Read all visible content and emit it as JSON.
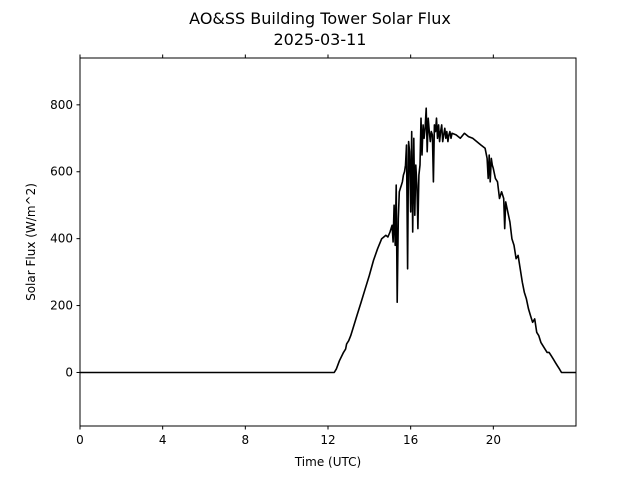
{
  "chart_data": {
    "type": "line",
    "title": "AO&SS Building Tower Solar Flux",
    "subtitle": "2025-03-11",
    "xlabel": "Time (UTC)",
    "ylabel": "Solar Flux (W/m^2)",
    "xlim": [
      0,
      24
    ],
    "ylim": [
      -160,
      940
    ],
    "xticks": [
      0,
      4,
      8,
      12,
      16,
      20
    ],
    "xtick_labels": [
      "0",
      "4",
      "8",
      "12",
      "16",
      "20"
    ],
    "yticks": [
      0,
      200,
      400,
      600,
      800
    ],
    "ytick_labels": [
      "0",
      "200",
      "400",
      "600",
      "800"
    ],
    "grid": false,
    "line_color": "#000000",
    "series": [
      {
        "x": [
          0,
          12.3,
          12.4,
          12.55,
          12.75,
          12.85,
          12.9,
          13.0,
          13.1,
          13.2,
          13.4,
          13.6,
          13.8,
          14.0,
          14.2,
          14.4,
          14.6,
          14.8,
          14.9,
          15.0,
          15.1,
          15.15,
          15.2,
          15.25,
          15.3,
          15.35,
          15.4,
          15.45,
          15.5,
          15.55,
          15.6,
          15.65,
          15.7,
          15.75,
          15.8,
          15.85,
          15.9,
          15.95,
          16.0,
          16.05,
          16.1,
          16.15,
          16.2,
          16.25,
          16.3,
          16.35,
          16.4,
          16.45,
          16.5,
          16.55,
          16.6,
          16.65,
          16.7,
          16.75,
          16.8,
          16.85,
          16.9,
          16.95,
          17.0,
          17.05,
          17.1,
          17.15,
          17.2,
          17.25,
          17.3,
          17.35,
          17.4,
          17.45,
          17.5,
          17.55,
          17.6,
          17.65,
          17.7,
          17.75,
          17.8,
          17.85,
          17.9,
          17.95,
          18.0,
          18.2,
          18.4,
          18.6,
          18.8,
          19.0,
          19.2,
          19.4,
          19.6,
          19.7,
          19.75,
          19.8,
          19.85,
          19.9,
          19.95,
          20.0,
          20.1,
          20.2,
          20.3,
          20.4,
          20.5,
          20.55,
          20.6,
          20.7,
          20.8,
          20.9,
          21.0,
          21.1,
          21.2,
          21.3,
          21.4,
          21.5,
          21.6,
          21.7,
          21.8,
          21.9,
          22.0,
          22.1,
          22.2,
          22.3,
          22.4,
          22.5,
          22.6,
          22.7,
          22.8,
          22.9,
          23.0,
          23.1,
          23.2,
          23.3,
          23.4,
          23.5,
          23.6,
          23.7,
          23.8,
          23.9,
          24.0
        ],
        "y": [
          0,
          0,
          10,
          35,
          60,
          70,
          85,
          95,
          110,
          130,
          170,
          210,
          250,
          290,
          335,
          370,
          400,
          410,
          405,
          420,
          440,
          390,
          500,
          380,
          560,
          210,
          460,
          540,
          550,
          560,
          570,
          590,
          600,
          620,
          680,
          310,
          690,
          660,
          480,
          720,
          420,
          700,
          470,
          620,
          560,
          430,
          590,
          620,
          760,
          650,
          740,
          700,
          730,
          790,
          660,
          760,
          720,
          690,
          720,
          710,
          570,
          740,
          720,
          760,
          700,
          740,
          690,
          720,
          740,
          690,
          710,
          730,
          700,
          720,
          690,
          710,
          720,
          700,
          715,
          710,
          700,
          715,
          705,
          700,
          690,
          680,
          670,
          640,
          580,
          650,
          570,
          640,
          620,
          610,
          580,
          570,
          520,
          540,
          520,
          430,
          510,
          480,
          450,
          400,
          380,
          340,
          350,
          310,
          270,
          240,
          220,
          190,
          170,
          150,
          160,
          120,
          110,
          90,
          80,
          70,
          60,
          60,
          50,
          40,
          30,
          20,
          10,
          0,
          0,
          0,
          0,
          0,
          0,
          0,
          0
        ]
      }
    ]
  }
}
